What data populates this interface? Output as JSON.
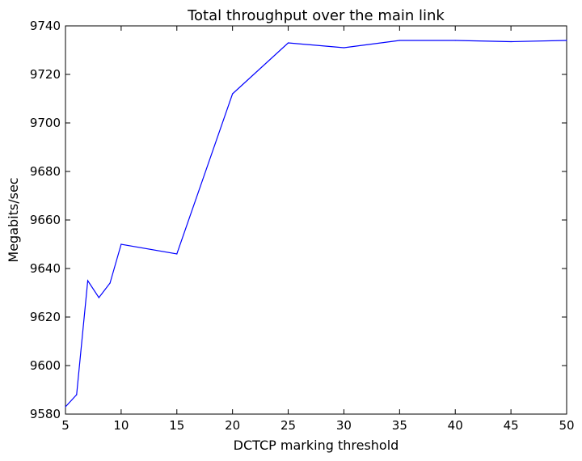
{
  "chart_data": {
    "type": "line",
    "title": "Total throughput over the main link",
    "xlabel": "DCTCP marking threshold",
    "ylabel": "Megabits/sec",
    "xlim": [
      5,
      50
    ],
    "ylim": [
      9580,
      9740
    ],
    "xticks": [
      5,
      10,
      15,
      20,
      25,
      30,
      35,
      40,
      45,
      50
    ],
    "yticks": [
      9580,
      9600,
      9620,
      9640,
      9660,
      9680,
      9700,
      9720,
      9740
    ],
    "grid": false,
    "series": [
      {
        "color": "#0000ff",
        "x": [
          5,
          6,
          7,
          8,
          9,
          10,
          15,
          20,
          25,
          30,
          35,
          40,
          45,
          50
        ],
        "y": [
          9583,
          9588,
          9635,
          9628,
          9634,
          9650,
          9646,
          9712,
          9733,
          9731,
          9734,
          9734,
          9733.5,
          9734
        ]
      }
    ]
  }
}
